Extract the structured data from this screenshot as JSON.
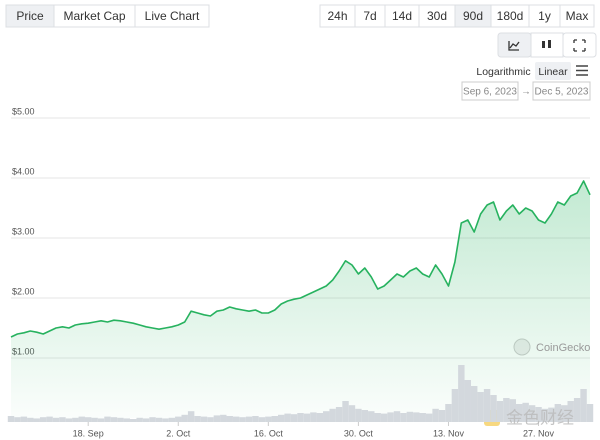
{
  "ui": {
    "tabs": [
      "Price",
      "Market Cap",
      "Live Chart"
    ],
    "active_tab": "Price",
    "ranges": [
      "24h",
      "7d",
      "14d",
      "30d",
      "90d",
      "180d",
      "1y",
      "Max"
    ],
    "active_range": "90d",
    "scales": [
      "Logarithmic",
      "Linear"
    ],
    "active_scale": "Linear",
    "date_from": "Sep 6, 2023",
    "date_arrow": "→",
    "date_to": "Dec 5, 2023",
    "watermarks": [
      "CoinGecko",
      "金色财经"
    ]
  },
  "chart_data": {
    "type": "line",
    "x": [
      "2023-09-06",
      "2023-09-07",
      "2023-09-08",
      "2023-09-09",
      "2023-09-10",
      "2023-09-11",
      "2023-09-12",
      "2023-09-13",
      "2023-09-14",
      "2023-09-15",
      "2023-09-16",
      "2023-09-17",
      "2023-09-18",
      "2023-09-19",
      "2023-09-20",
      "2023-09-21",
      "2023-09-22",
      "2023-09-23",
      "2023-09-24",
      "2023-09-25",
      "2023-09-26",
      "2023-09-27",
      "2023-09-28",
      "2023-09-29",
      "2023-09-30",
      "2023-10-01",
      "2023-10-02",
      "2023-10-03",
      "2023-10-04",
      "2023-10-05",
      "2023-10-06",
      "2023-10-07",
      "2023-10-08",
      "2023-10-09",
      "2023-10-10",
      "2023-10-11",
      "2023-10-12",
      "2023-10-13",
      "2023-10-14",
      "2023-10-15",
      "2023-10-16",
      "2023-10-17",
      "2023-10-18",
      "2023-10-19",
      "2023-10-20",
      "2023-10-21",
      "2023-10-22",
      "2023-10-23",
      "2023-10-24",
      "2023-10-25",
      "2023-10-26",
      "2023-10-27",
      "2023-10-28",
      "2023-10-29",
      "2023-10-30",
      "2023-10-31",
      "2023-11-01",
      "2023-11-02",
      "2023-11-03",
      "2023-11-04",
      "2023-11-05",
      "2023-11-06",
      "2023-11-07",
      "2023-11-08",
      "2023-11-09",
      "2023-11-10",
      "2023-11-11",
      "2023-11-12",
      "2023-11-13",
      "2023-11-14",
      "2023-11-15",
      "2023-11-16",
      "2023-11-17",
      "2023-11-18",
      "2023-11-19",
      "2023-11-20",
      "2023-11-21",
      "2023-11-22",
      "2023-11-23",
      "2023-11-24",
      "2023-11-25",
      "2023-11-26",
      "2023-11-27",
      "2023-11-28",
      "2023-11-29",
      "2023-11-30",
      "2023-12-01",
      "2023-12-02",
      "2023-12-03",
      "2023-12-04",
      "2023-12-05"
    ],
    "xlim": [
      "2023-09-06",
      "2023-12-05"
    ],
    "xticks": [
      {
        "value": "2023-09-18",
        "label": "18. Sep"
      },
      {
        "value": "2023-10-02",
        "label": "2. Oct"
      },
      {
        "value": "2023-10-16",
        "label": "16. Oct"
      },
      {
        "value": "2023-10-30",
        "label": "30. Oct"
      },
      {
        "value": "2023-11-13",
        "label": "13. Nov"
      },
      {
        "value": "2023-11-27",
        "label": "27. Nov"
      }
    ],
    "ylim": [
      0,
      5
    ],
    "yticks": [
      {
        "value": 1,
        "label": "$1.00"
      },
      {
        "value": 2,
        "label": "$2.00"
      },
      {
        "value": 3,
        "label": "$3.00"
      },
      {
        "value": 4,
        "label": "$4.00"
      },
      {
        "value": 5,
        "label": "$5.00"
      }
    ],
    "grid": true,
    "y2lim": [
      0,
      100
    ],
    "series": [
      {
        "color": "#27b25f",
        "values": [
          1.35,
          1.4,
          1.42,
          1.45,
          1.43,
          1.4,
          1.45,
          1.5,
          1.52,
          1.5,
          1.55,
          1.57,
          1.58,
          1.6,
          1.62,
          1.6,
          1.63,
          1.62,
          1.6,
          1.58,
          1.55,
          1.52,
          1.5,
          1.48,
          1.5,
          1.52,
          1.55,
          1.6,
          1.78,
          1.75,
          1.72,
          1.7,
          1.78,
          1.8,
          1.85,
          1.82,
          1.8,
          1.78,
          1.8,
          1.75,
          1.75,
          1.8,
          1.9,
          1.95,
          1.98,
          2.0,
          2.05,
          2.1,
          2.15,
          2.2,
          2.3,
          2.45,
          2.62,
          2.55,
          2.4,
          2.5,
          2.35,
          2.15,
          2.2,
          2.3,
          2.4,
          2.35,
          2.45,
          2.5,
          2.4,
          2.35,
          2.55,
          2.4,
          2.2,
          2.6,
          3.25,
          3.3,
          3.1,
          3.4,
          3.55,
          3.6,
          3.3,
          3.45,
          3.55,
          3.4,
          3.5,
          3.45,
          3.3,
          3.25,
          3.4,
          3.6,
          3.55,
          3.7,
          3.75,
          3.95,
          3.72
        ]
      },
      {
        "color": "#d3d8dd",
        "axis": "y2",
        "values": [
          10,
          8,
          9,
          7,
          6,
          8,
          9,
          7,
          8,
          6,
          7,
          9,
          8,
          7,
          6,
          9,
          8,
          7,
          6,
          5,
          7,
          6,
          8,
          7,
          6,
          7,
          9,
          12,
          18,
          10,
          9,
          8,
          11,
          12,
          10,
          9,
          8,
          9,
          10,
          8,
          9,
          10,
          12,
          14,
          13,
          15,
          14,
          16,
          15,
          18,
          22,
          25,
          35,
          28,
          22,
          20,
          18,
          15,
          14,
          16,
          18,
          15,
          17,
          16,
          15,
          14,
          22,
          20,
          30,
          55,
          95,
          70,
          60,
          50,
          55,
          45,
          35,
          40,
          38,
          30,
          32,
          28,
          25,
          22,
          24,
          30,
          28,
          35,
          40,
          55,
          30
        ]
      }
    ]
  }
}
